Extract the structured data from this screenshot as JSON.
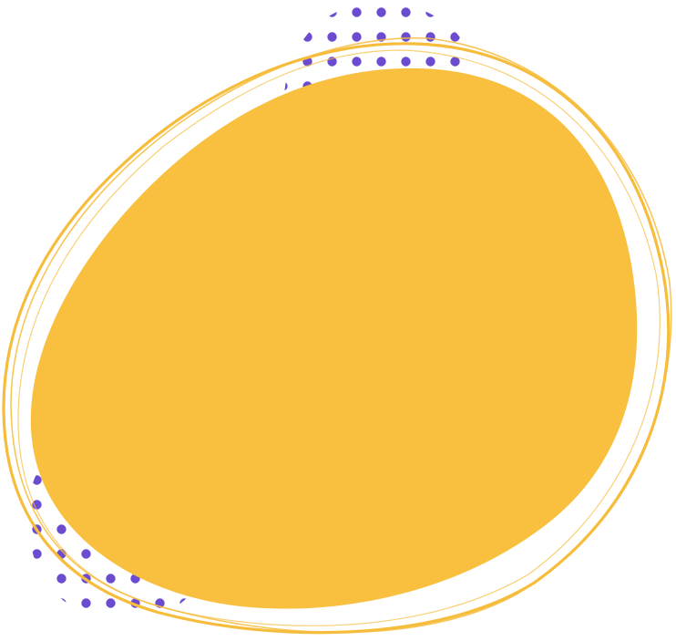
{
  "illustration": {
    "shapes": [
      {
        "name": "dot-pattern-top",
        "icon": "halftone-dots"
      },
      {
        "name": "dot-pattern-bottom-left",
        "icon": "halftone-dots"
      },
      {
        "name": "sketch-outline-ring",
        "icon": "hand-drawn-circle"
      },
      {
        "name": "yellow-blob",
        "icon": "organic-blob"
      }
    ],
    "colors": {
      "background": "#ffffff",
      "blob": "#F9BF3E",
      "outline": "#F6BC3C",
      "dots": "#6B4CD0"
    }
  }
}
